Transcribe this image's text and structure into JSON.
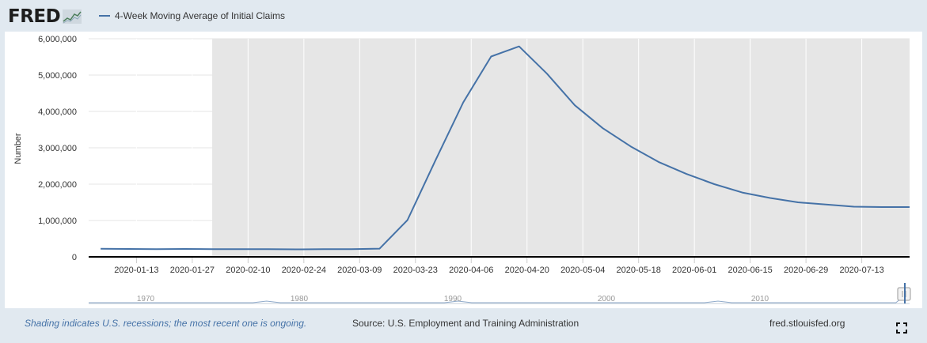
{
  "header": {
    "logo_text": "FRED",
    "legend_label": "4-Week Moving Average of Initial Claims"
  },
  "colors": {
    "series": "#4572a7",
    "recession_shade": "#e6e6e6",
    "background": "#e1e9f0"
  },
  "chart_data": {
    "type": "line",
    "ylabel": "Number",
    "ylim": [
      0,
      6000000
    ],
    "y_ticks": [
      0,
      1000000,
      2000000,
      3000000,
      4000000,
      5000000,
      6000000
    ],
    "y_tick_labels": [
      "0",
      "1,000,000",
      "2,000,000",
      "3,000,000",
      "4,000,000",
      "5,000,000",
      "6,000,000"
    ],
    "xlim": [
      "2020-01-01",
      "2020-07-25"
    ],
    "x_ticks": [
      "2020-01-13",
      "2020-01-27",
      "2020-02-10",
      "2020-02-24",
      "2020-03-09",
      "2020-03-23",
      "2020-04-06",
      "2020-04-20",
      "2020-05-04",
      "2020-05-18",
      "2020-06-01",
      "2020-06-15",
      "2020-06-29",
      "2020-07-13"
    ],
    "grid": true,
    "recession": {
      "start": "2020-02-01",
      "end": "ongoing"
    },
    "series": [
      {
        "x": [
          "2020-01-04",
          "2020-01-11",
          "2020-01-18",
          "2020-01-25",
          "2020-02-01",
          "2020-02-08",
          "2020-02-15",
          "2020-02-22",
          "2020-02-29",
          "2020-03-07",
          "2020-03-14",
          "2020-03-21",
          "2020-03-28",
          "2020-04-04",
          "2020-04-11",
          "2020-04-18",
          "2020-04-25",
          "2020-05-02",
          "2020-05-09",
          "2020-05-16",
          "2020-05-23",
          "2020-05-30",
          "2020-06-06",
          "2020-06-13",
          "2020-06-20",
          "2020-06-27",
          "2020-07-04",
          "2020-07-11",
          "2020-07-18",
          "2020-07-25"
        ],
        "values": [
          224000,
          218000,
          214000,
          217000,
          212000,
          211000,
          210000,
          206000,
          210000,
          214000,
          225000,
          1010000,
          2650000,
          4250000,
          5510000,
          5790000,
          5040000,
          4170000,
          3540000,
          3040000,
          2610000,
          2280000,
          2000000,
          1770000,
          1620000,
          1500000,
          1440000,
          1380000,
          1370000,
          1370000
        ]
      }
    ],
    "navigator": {
      "x_labels": [
        "1970",
        "1980",
        "1990",
        "2000",
        "2010"
      ]
    }
  },
  "footer": {
    "note": "Shading indicates U.S. recessions; the most recent one is ongoing.",
    "source": "Source: U.S. Employment and Training Administration",
    "site": "fred.stlouisfed.org"
  },
  "icons": {
    "logo_mark": "fred-chart-logo-icon",
    "fullscreen": "fullscreen-icon"
  }
}
